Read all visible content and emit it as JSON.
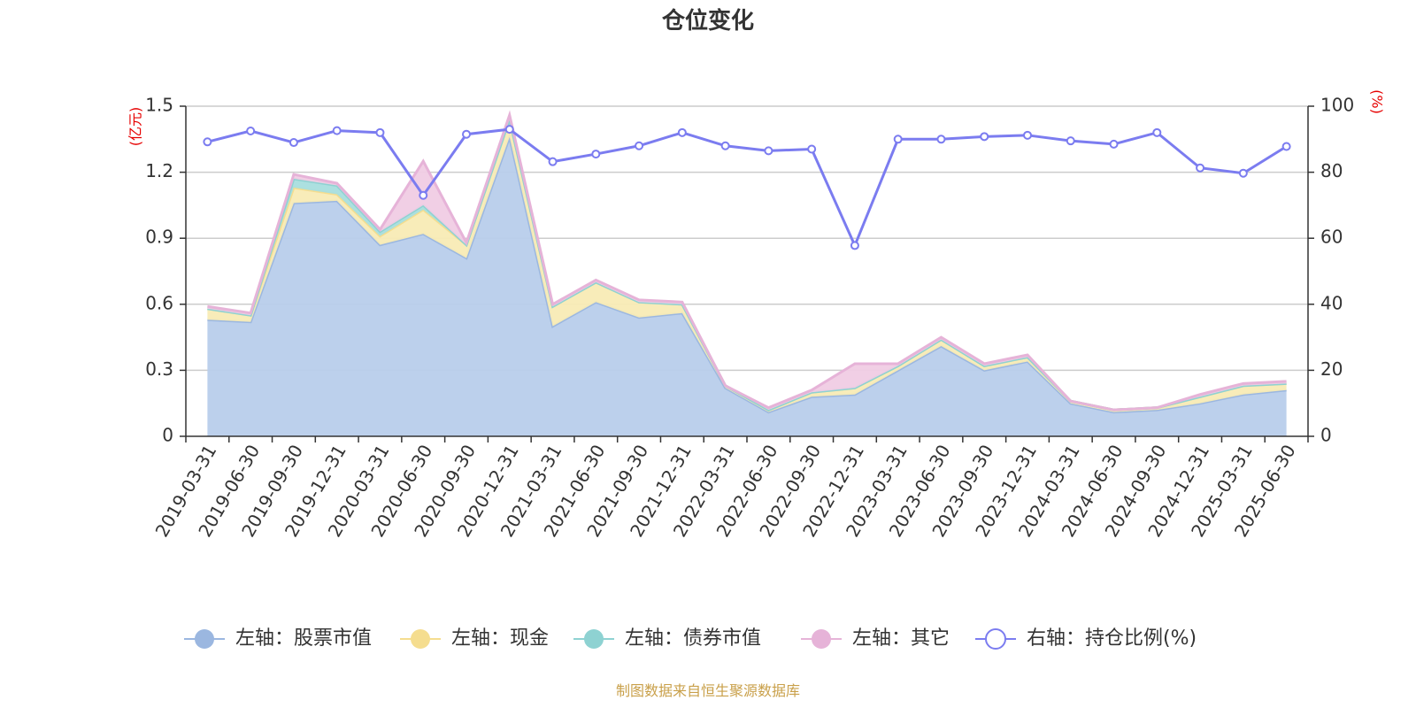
{
  "chart_data": {
    "type": "area",
    "title": "仓位变化",
    "left_axis": {
      "unit": "(亿元)",
      "ylim": [
        0,
        1.5
      ],
      "ticks": [
        "0",
        "0.3",
        "0.6",
        "0.9",
        "1.2",
        "1.5"
      ],
      "tick_values": [
        0,
        0.3,
        0.6,
        0.9,
        1.2,
        1.5
      ]
    },
    "right_axis": {
      "unit": "(%)",
      "ylim": [
        0,
        100
      ],
      "ticks": [
        "0",
        "20",
        "40",
        "60",
        "80",
        "100"
      ],
      "tick_values": [
        0,
        20,
        40,
        60,
        80,
        100
      ]
    },
    "grid": true,
    "legend_position": "bottom",
    "categories": [
      "2019-03-31",
      "2019-06-30",
      "2019-09-30",
      "2019-12-31",
      "2020-03-31",
      "2020-06-30",
      "2020-09-30",
      "2020-12-31",
      "2021-03-31",
      "2021-06-30",
      "2021-09-30",
      "2021-12-31",
      "2022-03-31",
      "2022-06-30",
      "2022-09-30",
      "2022-12-31",
      "2023-03-31",
      "2023-06-30",
      "2023-09-30",
      "2023-12-31",
      "2024-03-31",
      "2024-06-30",
      "2024-09-30",
      "2024-12-31",
      "2025-03-31",
      "2025-06-30"
    ],
    "series": [
      {
        "name": "左轴：股票市值",
        "axis": "left",
        "kind": "area",
        "color": "#9bb7e0",
        "fill": "#b8cdeb",
        "values": [
          0.53,
          0.52,
          1.06,
          1.07,
          0.87,
          0.92,
          0.81,
          1.36,
          0.5,
          0.61,
          0.54,
          0.56,
          0.22,
          0.11,
          0.18,
          0.19,
          0.3,
          0.41,
          0.3,
          0.34,
          0.15,
          0.11,
          0.12,
          0.15,
          0.19,
          0.21
        ]
      },
      {
        "name": "左轴：现金",
        "axis": "left",
        "kind": "area",
        "color": "#f5dd8f",
        "fill": "#f8ebb5",
        "values": [
          0.05,
          0.03,
          0.07,
          0.03,
          0.04,
          0.11,
          0.06,
          0.08,
          0.09,
          0.09,
          0.07,
          0.04,
          0.01,
          0.01,
          0.02,
          0.03,
          0.02,
          0.03,
          0.02,
          0.02,
          0.01,
          0.01,
          0.01,
          0.03,
          0.04,
          0.03
        ]
      },
      {
        "name": "左轴：债券市值",
        "axis": "left",
        "kind": "area",
        "color": "#8ed2d2",
        "fill": "#a8dede",
        "values": [
          0.0,
          0.0,
          0.04,
          0.04,
          0.02,
          0.02,
          0.0,
          0.0,
          0.0,
          0.0,
          0.0,
          0.0,
          0.0,
          0.0,
          0.0,
          0.0,
          0.0,
          0.0,
          0.0,
          0.0,
          0.0,
          0.0,
          0.0,
          0.0,
          0.0,
          0.0
        ]
      },
      {
        "name": "左轴：其它",
        "axis": "left",
        "kind": "area",
        "color": "#e6b3d8",
        "fill": "#f0cce4",
        "values": [
          0.01,
          0.01,
          0.02,
          0.01,
          0.01,
          0.2,
          0.01,
          0.02,
          0.01,
          0.01,
          0.01,
          0.01,
          0.0,
          0.01,
          0.01,
          0.11,
          0.01,
          0.01,
          0.01,
          0.01,
          0.0,
          0.0,
          0.0,
          0.01,
          0.01,
          0.01
        ]
      },
      {
        "name": "右轴：持仓比例(%)",
        "axis": "right",
        "kind": "line",
        "color": "#7b7cf0",
        "values": [
          89.2,
          92.5,
          89.0,
          92.6,
          92.0,
          73.0,
          91.5,
          93.0,
          83.2,
          85.5,
          88.0,
          92.0,
          88.0,
          86.5,
          87.0,
          57.8,
          90.0,
          90.0,
          90.8,
          91.2,
          89.5,
          88.5,
          92.0,
          81.3,
          79.7,
          87.8
        ]
      }
    ]
  },
  "source_text": "制图数据来自恒生聚源数据库"
}
